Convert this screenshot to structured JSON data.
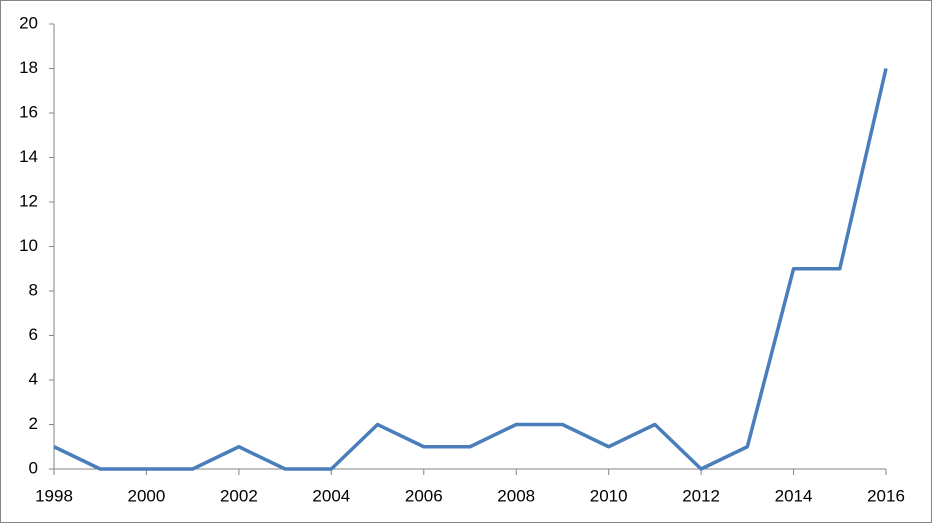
{
  "chart_data": {
    "type": "line",
    "x": [
      1998,
      1999,
      2000,
      2001,
      2002,
      2003,
      2004,
      2005,
      2006,
      2007,
      2008,
      2009,
      2010,
      2011,
      2012,
      2013,
      2014,
      2015,
      2016
    ],
    "values": [
      1,
      0,
      0,
      0,
      1,
      0,
      0,
      2,
      1,
      1,
      2,
      2,
      1,
      2,
      0,
      1,
      9,
      9,
      18
    ],
    "color": "#4a7ebb",
    "xlim": [
      1998,
      2016
    ],
    "xticks": [
      1998,
      2000,
      2002,
      2004,
      2006,
      2008,
      2010,
      2012,
      2014,
      2016
    ],
    "ylim": [
      0,
      20
    ],
    "yticks": [
      0,
      2,
      4,
      6,
      8,
      10,
      12,
      14,
      16,
      18,
      20
    ],
    "grid": false
  }
}
